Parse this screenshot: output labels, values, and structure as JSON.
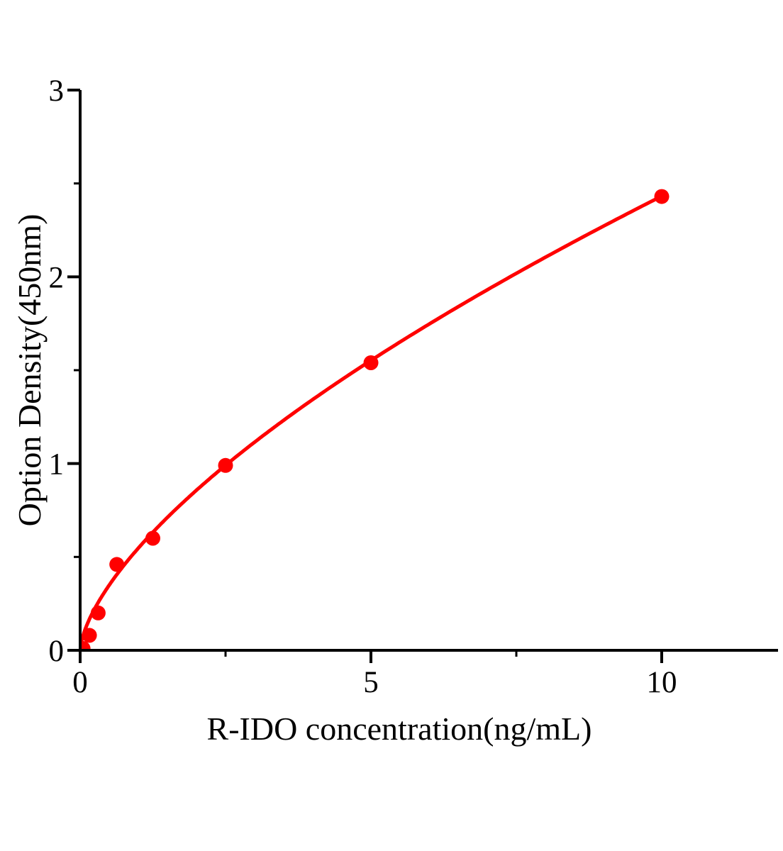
{
  "page": {
    "background_color": "#ffffff",
    "axis_color": "#000000"
  },
  "chart_data": {
    "type": "scatter",
    "title": "",
    "xlabel": "R-IDO concentration(ng/mL)",
    "ylabel": "Option Density(450nm)",
    "grid": false,
    "legend": false,
    "x_axis": {
      "min": 0,
      "max": 12,
      "major_ticks": [
        0,
        5,
        10
      ],
      "tick_labels": [
        "0",
        "5",
        "10"
      ],
      "minor_ticks": [
        2.5,
        7.5
      ]
    },
    "y_axis": {
      "min": 0,
      "max": 3,
      "major_ticks": [
        0,
        1,
        2,
        3
      ],
      "tick_labels": [
        "0",
        "1",
        "2",
        "3"
      ],
      "minor_ticks": [
        0.5,
        1.5,
        2.5
      ]
    },
    "series": {
      "color": "#ff0000",
      "marker": "circle",
      "points": [
        [
          0.05,
          0.01
        ],
        [
          0.16,
          0.08
        ],
        [
          0.31,
          0.2
        ],
        [
          0.63,
          0.46
        ],
        [
          1.25,
          0.6
        ],
        [
          2.5,
          0.99
        ],
        [
          5,
          1.54
        ],
        [
          10,
          2.43
        ]
      ],
      "fit_curve": {
        "type": "power",
        "a": 0.547,
        "b": 0.648,
        "x_start": 0.002,
        "x_end": 10
      }
    }
  }
}
